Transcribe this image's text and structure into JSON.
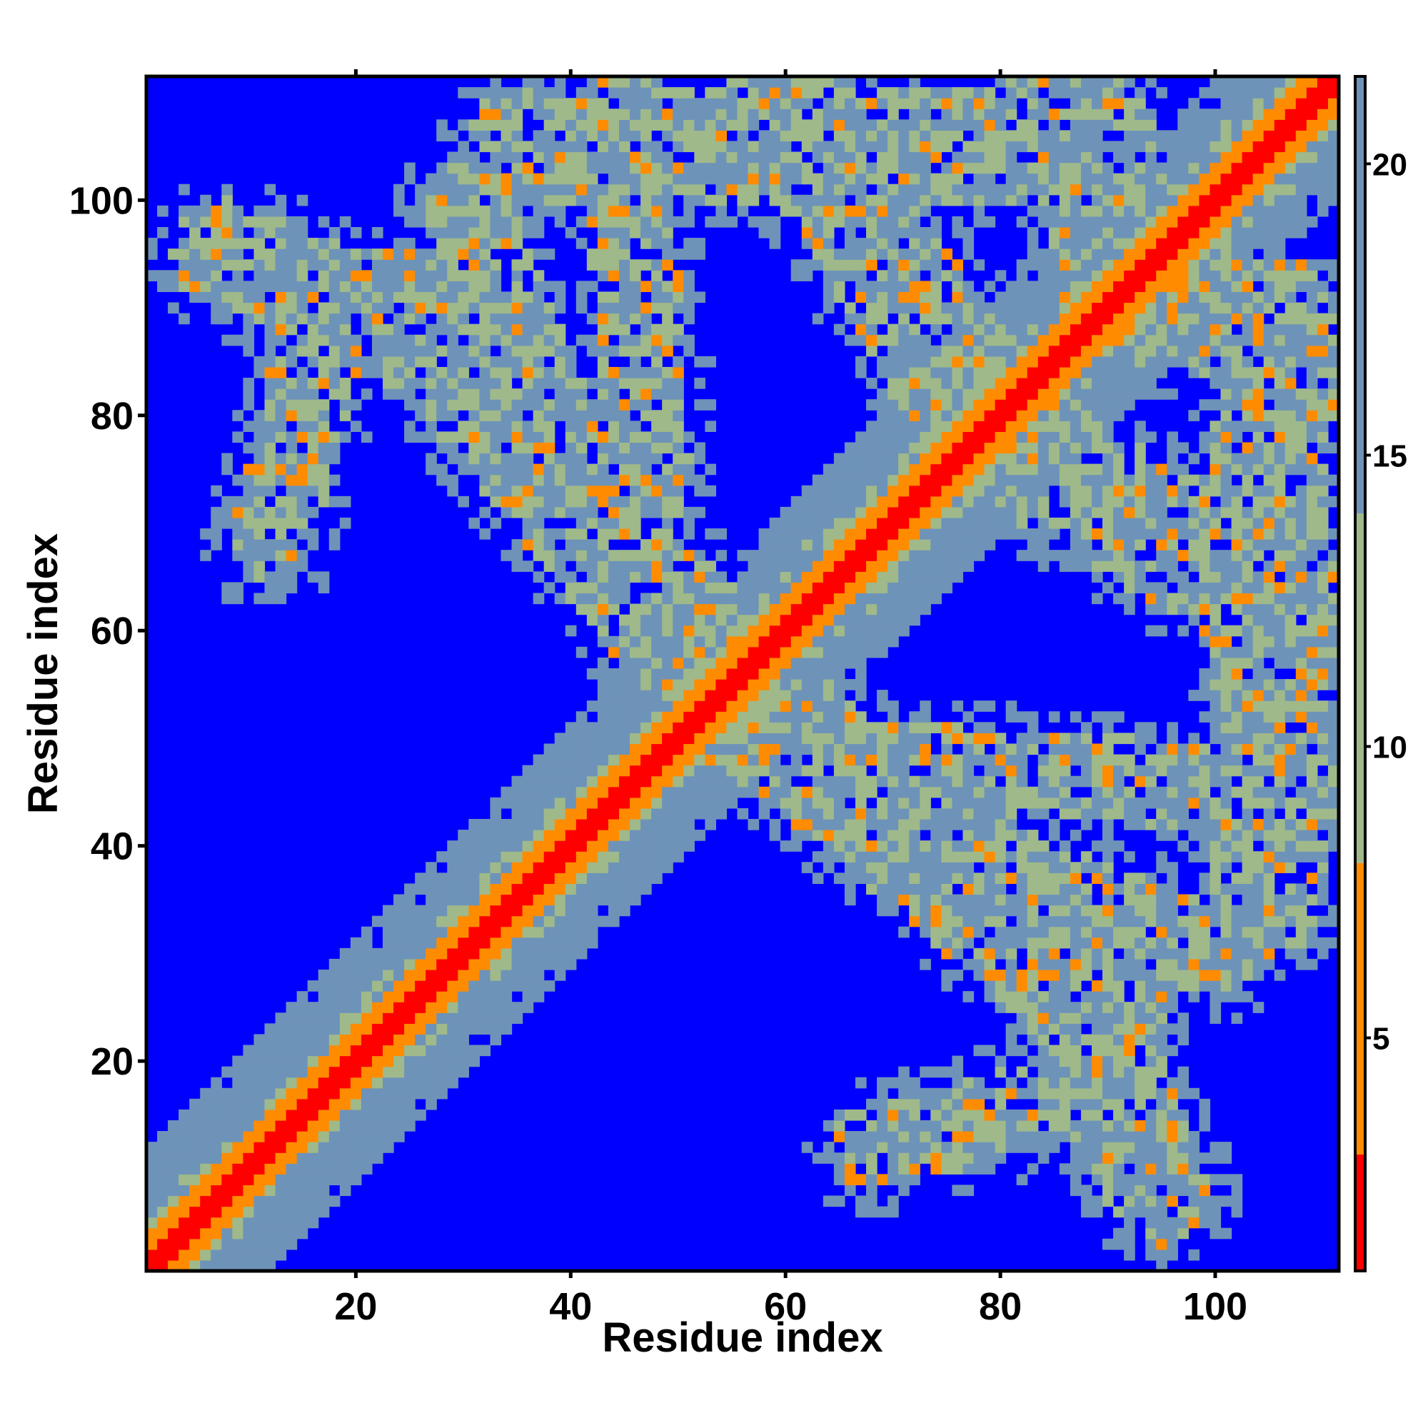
{
  "chart_data": {
    "type": "heatmap",
    "title": "",
    "xlabel": "Residue index",
    "ylabel": "Residue index",
    "n_residues": 111,
    "xlim": [
      1,
      111
    ],
    "ylim": [
      1,
      111
    ],
    "x_ticks": [
      20,
      40,
      60,
      80,
      100
    ],
    "y_ticks": [
      20,
      40,
      60,
      80,
      100
    ],
    "colorbar": {
      "ticks": [
        5,
        10,
        15,
        20
      ],
      "range": [
        1,
        21.5
      ],
      "cutoff_value": 21.5,
      "colors": {
        "near": "#ff0000",
        "close": "#ff8c00",
        "mid": "#9fb98a",
        "far": "#6e93b8",
        "background": "#0000ff"
      }
    },
    "features": {
      "diagonal_band": "strong contacts along i = j",
      "beta_like_contacts": [
        {
          "description": "antiparallel band",
          "from": [
            20,
            90
          ],
          "to": [
            55,
            50
          ]
        },
        {
          "description": "antiparallel band",
          "from": [
            55,
            55
          ],
          "to": [
            110,
            20
          ]
        },
        {
          "description": "N-terminal patch",
          "center": [
            15,
            85
          ]
        },
        {
          "description": "C-terminal patch",
          "center": [
            90,
            10
          ]
        }
      ]
    }
  }
}
